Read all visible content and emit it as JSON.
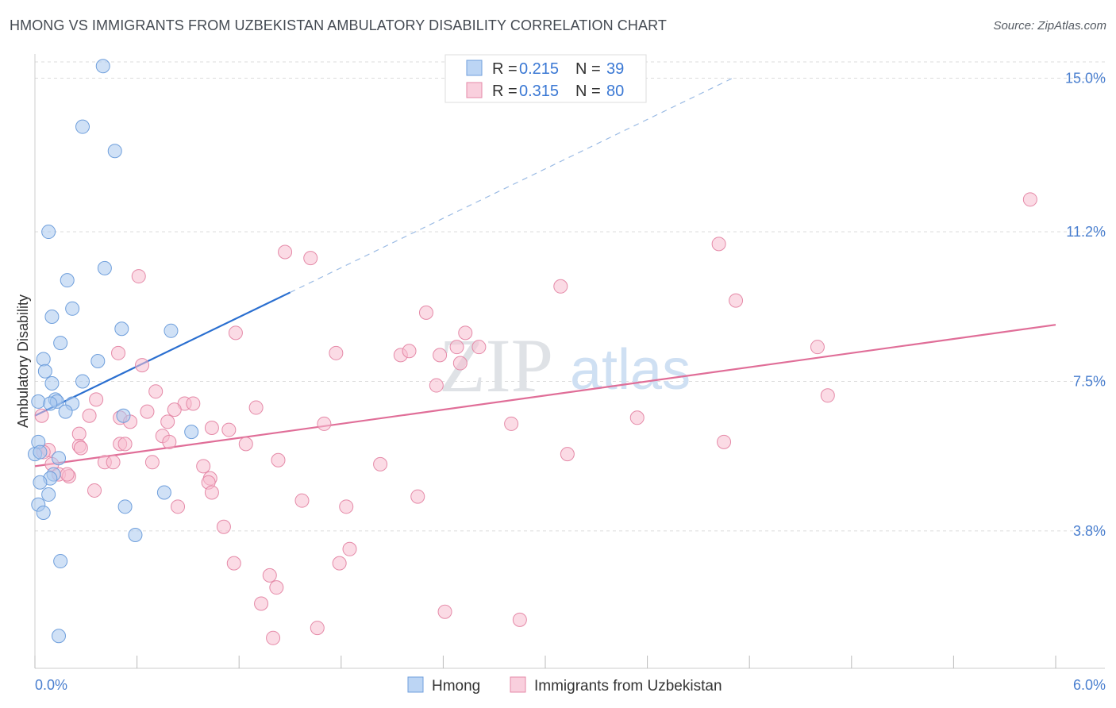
{
  "header": {
    "title": "HMONG VS IMMIGRANTS FROM UZBEKISTAN AMBULATORY DISABILITY CORRELATION CHART",
    "source": "Source: ZipAtlas.com"
  },
  "watermark": {
    "zip": "ZIP",
    "atlas": "atlas"
  },
  "legend": {
    "r_label": "R =",
    "n_label": "N =",
    "rows": [
      {
        "r": "0.215",
        "n": "39"
      },
      {
        "r": "0.315",
        "n": "80"
      }
    ]
  },
  "bottom_legend": [
    "Hmong",
    "Immigrants from Uzbekistan"
  ],
  "chart_data": {
    "type": "scatter",
    "title": "HMONG VS IMMIGRANTS FROM UZBEKISTAN AMBULATORY DISABILITY CORRELATION CHART",
    "ylabel": "Ambulatory Disability",
    "xlabel": "",
    "xlim": [
      0,
      6.0
    ],
    "ylim": [
      0.4,
      15.6
    ],
    "x_tick_labels": [
      "0.0%",
      "6.0%"
    ],
    "y_ticks": [
      3.8,
      7.5,
      11.2,
      15.0
    ],
    "y_tick_labels": [
      "3.8%",
      "7.5%",
      "11.2%",
      "15.0%"
    ],
    "grid": "horizontal dashed",
    "legend_position": "top-center",
    "series": [
      {
        "name": "Hmong",
        "color": "#a9c8ef",
        "stroke": "#6f9fdc",
        "trend_color": "#2a6fd0",
        "R": 0.215,
        "N": 39,
        "trend": {
          "x0": 0.0,
          "y0": 6.65,
          "x1": 1.5,
          "y1": 9.7,
          "dash_to_x": 4.1,
          "dash_to_y": 15.0
        },
        "points": [
          [
            0.4,
            15.3
          ],
          [
            0.28,
            13.8
          ],
          [
            0.47,
            13.2
          ],
          [
            0.08,
            11.2
          ],
          [
            0.41,
            10.3
          ],
          [
            0.19,
            10.0
          ],
          [
            0.22,
            9.3
          ],
          [
            0.1,
            9.1
          ],
          [
            0.51,
            8.8
          ],
          [
            0.8,
            8.75
          ],
          [
            0.15,
            8.45
          ],
          [
            0.37,
            8.0
          ],
          [
            0.05,
            8.05
          ],
          [
            0.06,
            7.75
          ],
          [
            0.1,
            7.45
          ],
          [
            0.28,
            7.5
          ],
          [
            0.02,
            7.0
          ],
          [
            0.12,
            7.05
          ],
          [
            0.13,
            7.0
          ],
          [
            0.09,
            6.95
          ],
          [
            0.22,
            6.95
          ],
          [
            0.18,
            6.75
          ],
          [
            0.52,
            6.65
          ],
          [
            0.92,
            6.25
          ],
          [
            0.02,
            6.0
          ],
          [
            0.0,
            5.7
          ],
          [
            0.14,
            5.6
          ],
          [
            0.11,
            5.2
          ],
          [
            0.09,
            5.1
          ],
          [
            0.03,
            5.0
          ],
          [
            0.08,
            4.7
          ],
          [
            0.76,
            4.75
          ],
          [
            0.02,
            4.45
          ],
          [
            0.53,
            4.4
          ],
          [
            0.05,
            4.25
          ],
          [
            0.59,
            3.7
          ],
          [
            0.15,
            3.05
          ],
          [
            0.14,
            1.2
          ],
          [
            0.03,
            5.75
          ]
        ]
      },
      {
        "name": "Immigrants from Uzbekistan",
        "color": "#f7bed0",
        "stroke": "#e58aa8",
        "trend_color": "#e06e98",
        "R": 0.315,
        "N": 80,
        "trend": {
          "x0": 0.0,
          "y0": 5.4,
          "x1": 6.0,
          "y1": 8.9
        },
        "points": [
          [
            5.85,
            12.0
          ],
          [
            4.02,
            10.9
          ],
          [
            1.47,
            10.7
          ],
          [
            1.62,
            10.55
          ],
          [
            0.61,
            10.1
          ],
          [
            3.09,
            9.85
          ],
          [
            4.12,
            9.5
          ],
          [
            2.3,
            9.2
          ],
          [
            2.53,
            8.7
          ],
          [
            1.18,
            8.7
          ],
          [
            2.48,
            8.35
          ],
          [
            2.61,
            8.35
          ],
          [
            4.6,
            8.35
          ],
          [
            1.77,
            8.2
          ],
          [
            2.15,
            8.15
          ],
          [
            2.2,
            8.25
          ],
          [
            2.38,
            8.15
          ],
          [
            0.49,
            8.2
          ],
          [
            2.5,
            7.95
          ],
          [
            0.63,
            7.9
          ],
          [
            2.36,
            7.4
          ],
          [
            0.71,
            7.25
          ],
          [
            4.66,
            7.15
          ],
          [
            0.36,
            7.05
          ],
          [
            0.88,
            6.95
          ],
          [
            0.93,
            6.95
          ],
          [
            1.3,
            6.85
          ],
          [
            0.66,
            6.75
          ],
          [
            0.82,
            6.8
          ],
          [
            0.04,
            6.65
          ],
          [
            0.5,
            6.6
          ],
          [
            0.32,
            6.65
          ],
          [
            0.56,
            6.5
          ],
          [
            0.78,
            6.5
          ],
          [
            1.7,
            6.45
          ],
          [
            2.8,
            6.45
          ],
          [
            3.54,
            6.6
          ],
          [
            1.04,
            6.35
          ],
          [
            1.14,
            6.3
          ],
          [
            0.26,
            6.2
          ],
          [
            0.75,
            6.15
          ],
          [
            0.79,
            6.0
          ],
          [
            0.5,
            5.95
          ],
          [
            0.26,
            5.9
          ],
          [
            1.24,
            5.95
          ],
          [
            0.53,
            5.95
          ],
          [
            4.05,
            6.0
          ],
          [
            0.27,
            5.85
          ],
          [
            0.08,
            5.8
          ],
          [
            0.05,
            5.75
          ],
          [
            0.1,
            5.45
          ],
          [
            0.41,
            5.5
          ],
          [
            0.46,
            5.5
          ],
          [
            0.69,
            5.5
          ],
          [
            1.43,
            5.55
          ],
          [
            2.03,
            5.45
          ],
          [
            3.13,
            5.7
          ],
          [
            0.99,
            5.4
          ],
          [
            0.14,
            5.2
          ],
          [
            0.2,
            5.15
          ],
          [
            0.19,
            5.2
          ],
          [
            1.03,
            5.1
          ],
          [
            1.02,
            5.0
          ],
          [
            1.04,
            4.75
          ],
          [
            0.35,
            4.8
          ],
          [
            2.25,
            4.65
          ],
          [
            1.57,
            4.55
          ],
          [
            1.83,
            4.4
          ],
          [
            0.84,
            4.4
          ],
          [
            1.11,
            3.9
          ],
          [
            1.85,
            3.35
          ],
          [
            1.17,
            3.0
          ],
          [
            1.79,
            3.0
          ],
          [
            1.38,
            2.7
          ],
          [
            1.42,
            2.4
          ],
          [
            1.33,
            2.0
          ],
          [
            2.41,
            1.8
          ],
          [
            2.85,
            1.6
          ],
          [
            1.66,
            1.4
          ],
          [
            1.4,
            1.15
          ]
        ]
      }
    ]
  }
}
